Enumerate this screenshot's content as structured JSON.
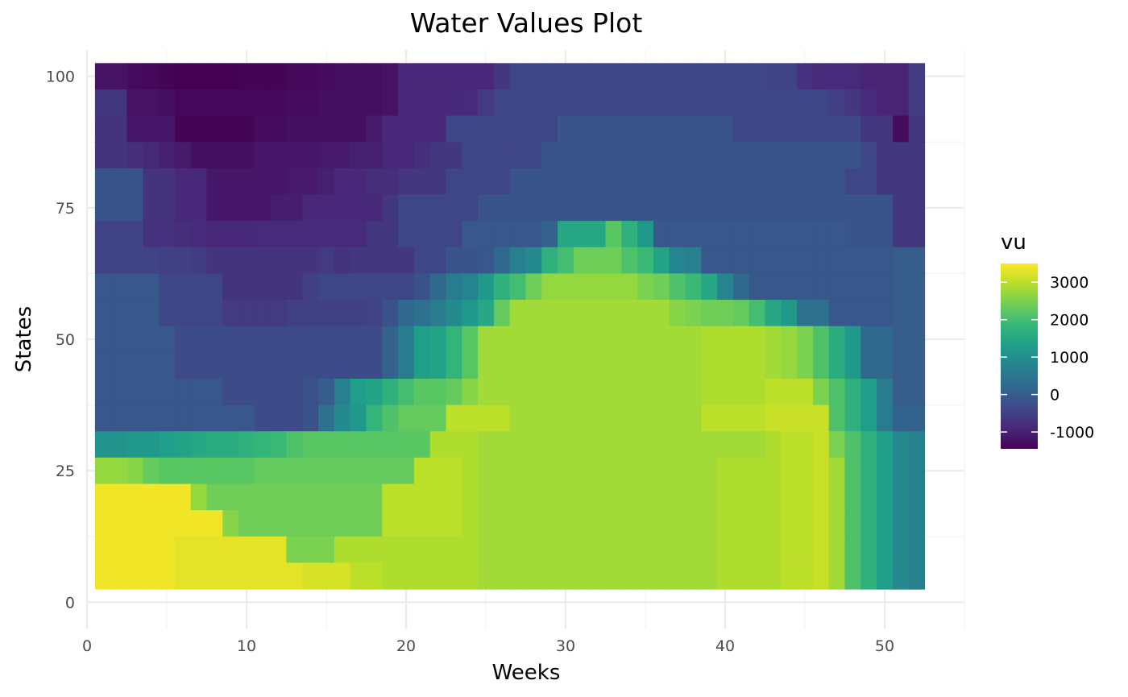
{
  "chart_data": {
    "type": "heatmap",
    "title": "Water Values Plot",
    "xlabel": "Weeks",
    "ylabel": "States",
    "x_range": [
      1,
      52
    ],
    "y_range": [
      5,
      100
    ],
    "xlim": [
      0,
      55
    ],
    "ylim": [
      -5,
      105
    ],
    "x_ticks": [
      0,
      10,
      20,
      30,
      40,
      50
    ],
    "y_ticks": [
      0,
      25,
      50,
      75,
      100
    ],
    "x_tick_labels": [
      "0",
      "10",
      "20",
      "30",
      "40",
      "50"
    ],
    "y_tick_labels": [
      "0",
      "25",
      "50",
      "75",
      "100"
    ],
    "grid": true,
    "colorscale": "viridis",
    "legend": {
      "title": "vu",
      "position": "right",
      "range": [
        -1450,
        3500
      ],
      "breaks": [
        -1000,
        0,
        1000,
        2000,
        3000
      ],
      "labels": [
        "-1000",
        "0",
        "1000",
        "2000",
        "3000"
      ]
    },
    "weeks": [
      1,
      2,
      3,
      4,
      5,
      6,
      7,
      8,
      9,
      10,
      11,
      12,
      13,
      14,
      15,
      16,
      17,
      18,
      19,
      20,
      21,
      22,
      23,
      24,
      25,
      26,
      27,
      28,
      29,
      30,
      31,
      32,
      33,
      34,
      35,
      36,
      37,
      38,
      39,
      40,
      41,
      42,
      43,
      44,
      45,
      46,
      47,
      48,
      49,
      50,
      51,
      52
    ],
    "states": [
      100,
      95,
      90,
      85,
      80,
      75,
      70,
      65,
      60,
      55,
      50,
      45,
      40,
      35,
      30,
      25,
      20,
      15,
      10,
      5
    ],
    "vu": [
      [
        -1200,
        -1200,
        -1300,
        -1350,
        -1400,
        -1450,
        -1450,
        -1450,
        -1450,
        -1400,
        -1400,
        -1400,
        -1350,
        -1350,
        -1300,
        -1250,
        -1250,
        -1250,
        -1200,
        -900,
        -900,
        -900,
        -900,
        -900,
        -900,
        -650,
        -400,
        -400,
        -400,
        -400,
        -400,
        -400,
        -400,
        -400,
        -400,
        -400,
        -400,
        -400,
        -400,
        -400,
        -400,
        -400,
        -450,
        -450,
        -750,
        -850,
        -850,
        -850,
        -950,
        -950,
        -950,
        -550
      ],
      [
        -650,
        -650,
        -1200,
        -1200,
        -1250,
        -1350,
        -1350,
        -1350,
        -1350,
        -1350,
        -1350,
        -1350,
        -1300,
        -1300,
        -1250,
        -1250,
        -1250,
        -1250,
        -1200,
        -900,
        -900,
        -900,
        -900,
        -850,
        -600,
        -400,
        -400,
        -400,
        -400,
        -400,
        -400,
        -400,
        -400,
        -400,
        -400,
        -400,
        -400,
        -400,
        -400,
        -400,
        -400,
        -400,
        -400,
        -400,
        -400,
        -400,
        -500,
        -650,
        -850,
        -950,
        -950,
        -550
      ],
      [
        -700,
        -700,
        -1150,
        -1150,
        -1150,
        -1400,
        -1400,
        -1400,
        -1400,
        -1400,
        -1300,
        -1300,
        -1250,
        -1250,
        -1250,
        -1250,
        -1250,
        -1100,
        -900,
        -900,
        -900,
        -900,
        -400,
        -400,
        -400,
        -400,
        -400,
        -400,
        -400,
        -150,
        -150,
        -150,
        -150,
        -150,
        -150,
        -150,
        -150,
        -150,
        -150,
        -150,
        -400,
        -400,
        -400,
        -400,
        -400,
        -400,
        -400,
        -400,
        -650,
        -650,
        -1300,
        -650
      ],
      [
        -700,
        -700,
        -800,
        -900,
        -1000,
        -1100,
        -1250,
        -1250,
        -1250,
        -1250,
        -1150,
        -1150,
        -1150,
        -1150,
        -1100,
        -1100,
        -1000,
        -1000,
        -900,
        -900,
        -800,
        -650,
        -650,
        -400,
        -400,
        -400,
        -400,
        -400,
        -150,
        -150,
        -150,
        -150,
        -150,
        -150,
        -150,
        -150,
        -150,
        -150,
        -150,
        -150,
        -150,
        -150,
        -150,
        -150,
        -150,
        -150,
        -150,
        -150,
        -400,
        -650,
        -650,
        -650
      ],
      [
        -150,
        -150,
        -150,
        -700,
        -700,
        -900,
        -900,
        -1150,
        -1150,
        -1150,
        -1150,
        -1150,
        -1100,
        -1100,
        -1000,
        -900,
        -900,
        -800,
        -800,
        -650,
        -650,
        -650,
        -400,
        -400,
        -400,
        -400,
        -150,
        -150,
        -150,
        -150,
        -150,
        -150,
        -150,
        -150,
        -150,
        -150,
        -150,
        -150,
        -150,
        -150,
        -150,
        -150,
        -150,
        -150,
        -150,
        -150,
        -150,
        -400,
        -400,
        -650,
        -650,
        -650
      ],
      [
        -150,
        -150,
        -150,
        -700,
        -700,
        -900,
        -900,
        -1150,
        -1150,
        -1150,
        -1150,
        -1050,
        -1050,
        -900,
        -900,
        -900,
        -900,
        -900,
        -650,
        -400,
        -400,
        -400,
        -400,
        -400,
        -150,
        -150,
        -150,
        -150,
        -150,
        -150,
        -150,
        -150,
        -150,
        -150,
        -150,
        -150,
        -150,
        -150,
        -150,
        -150,
        -150,
        -150,
        -150,
        -150,
        -150,
        -150,
        -150,
        -150,
        -150,
        -150,
        -650,
        -650
      ],
      [
        -450,
        -450,
        -450,
        -750,
        -750,
        -800,
        -850,
        -900,
        -900,
        -900,
        -850,
        -850,
        -850,
        -850,
        -850,
        -850,
        -850,
        -650,
        -650,
        -400,
        -400,
        -400,
        -400,
        -100,
        -100,
        -100,
        -100,
        -100,
        100,
        1500,
        1500,
        1500,
        2200,
        1700,
        1200,
        -100,
        -100,
        -100,
        -100,
        -100,
        -100,
        -100,
        -100,
        -100,
        -100,
        -100,
        -100,
        -150,
        -150,
        -150,
        -650,
        -650
      ],
      [
        -450,
        -450,
        -450,
        -450,
        -500,
        -500,
        -550,
        -700,
        -700,
        -700,
        -700,
        -700,
        -700,
        -700,
        -600,
        -700,
        -650,
        -650,
        -650,
        -650,
        -400,
        -400,
        -150,
        -150,
        -100,
        200,
        700,
        900,
        1700,
        2000,
        2400,
        2400,
        2400,
        2100,
        1900,
        1400,
        800,
        700,
        -100,
        -100,
        -100,
        -100,
        -100,
        -100,
        -100,
        -100,
        -100,
        -100,
        -100,
        -100,
        0,
        0
      ],
      [
        -100,
        -100,
        -100,
        -100,
        -400,
        -400,
        -400,
        -400,
        -700,
        -700,
        -700,
        -700,
        -700,
        -500,
        -400,
        -400,
        -400,
        -400,
        -400,
        -400,
        -200,
        200,
        600,
        800,
        1200,
        1700,
        2000,
        2400,
        2700,
        2700,
        2700,
        2700,
        2700,
        2700,
        2500,
        2400,
        2100,
        1900,
        1500,
        800,
        200,
        -100,
        -100,
        -100,
        -100,
        -100,
        -100,
        -100,
        -100,
        -100,
        0,
        0
      ],
      [
        -100,
        -100,
        -100,
        -100,
        -400,
        -400,
        -400,
        -400,
        -600,
        -600,
        -600,
        -600,
        -500,
        -500,
        -500,
        -500,
        -500,
        -450,
        -200,
        200,
        400,
        600,
        900,
        1200,
        1500,
        2300,
        2800,
        2800,
        2800,
        2800,
        2800,
        2800,
        2800,
        2800,
        2800,
        2800,
        2600,
        2500,
        2400,
        2400,
        2300,
        2000,
        1500,
        1200,
        400,
        400,
        -100,
        -100,
        -100,
        -100,
        0,
        0
      ],
      [
        -100,
        -100,
        -100,
        -100,
        -100,
        -300,
        -300,
        -300,
        -300,
        -300,
        -300,
        -300,
        -300,
        -300,
        -300,
        -300,
        -300,
        -300,
        100,
        600,
        1300,
        1400,
        1800,
        2200,
        2800,
        2800,
        2800,
        2800,
        2800,
        2800,
        2800,
        2800,
        2800,
        2800,
        2800,
        2800,
        2800,
        2800,
        2900,
        2900,
        2900,
        2900,
        2800,
        2700,
        2500,
        2100,
        1600,
        1200,
        200,
        200,
        0,
        0
      ],
      [
        -100,
        -100,
        -100,
        -100,
        -100,
        -300,
        -300,
        -300,
        -300,
        -300,
        -300,
        -300,
        -300,
        -300,
        -300,
        -300,
        -300,
        -300,
        100,
        600,
        1300,
        1400,
        1800,
        2200,
        2800,
        2800,
        2800,
        2800,
        2800,
        2800,
        2800,
        2800,
        2800,
        2800,
        2800,
        2800,
        2800,
        2800,
        2900,
        2900,
        2900,
        2900,
        2800,
        2700,
        2500,
        2100,
        1600,
        1200,
        200,
        200,
        0,
        0
      ],
      [
        -100,
        -100,
        -100,
        -100,
        -100,
        -100,
        -100,
        -100,
        -300,
        -300,
        -300,
        -300,
        -300,
        -200,
        0,
        700,
        1300,
        1400,
        1700,
        2000,
        2200,
        2200,
        2300,
        2600,
        2800,
        2800,
        2800,
        2800,
        2800,
        2800,
        2800,
        2800,
        2800,
        2800,
        2800,
        2800,
        2800,
        2800,
        2900,
        2900,
        2900,
        2900,
        3000,
        3000,
        3000,
        2500,
        2100,
        1700,
        1300,
        600,
        0,
        0
      ],
      [
        -100,
        -100,
        -100,
        -100,
        -100,
        -100,
        -100,
        -100,
        -100,
        -100,
        -300,
        -300,
        -300,
        -200,
        400,
        900,
        1200,
        1800,
        2100,
        2300,
        2300,
        2300,
        3000,
        3000,
        3000,
        3000,
        2800,
        2800,
        2800,
        2800,
        2800,
        2800,
        2800,
        2800,
        2800,
        2800,
        2800,
        2800,
        3000,
        3000,
        3000,
        3000,
        3100,
        3100,
        3100,
        3100,
        2100,
        1700,
        1300,
        600,
        100,
        100
      ],
      [
        1100,
        1100,
        1200,
        1200,
        1300,
        1400,
        1500,
        1600,
        1600,
        1700,
        1800,
        1900,
        2100,
        2200,
        2200,
        2200,
        2200,
        2200,
        2200,
        2200,
        2200,
        2900,
        2900,
        2900,
        2800,
        2800,
        2800,
        2800,
        2800,
        2800,
        2800,
        2800,
        2800,
        2800,
        2800,
        2800,
        2800,
        2800,
        2800,
        2800,
        2800,
        2800,
        2900,
        3000,
        3000,
        3100,
        2500,
        2100,
        1700,
        1300,
        900,
        700
      ],
      [
        2700,
        2700,
        2600,
        2300,
        2200,
        2200,
        2200,
        2200,
        2200,
        2200,
        2300,
        2300,
        2300,
        2300,
        2300,
        2300,
        2300,
        2300,
        2300,
        2300,
        3000,
        3000,
        3000,
        2900,
        2800,
        2800,
        2800,
        2800,
        2800,
        2800,
        2800,
        2800,
        2800,
        2800,
        2800,
        2800,
        2800,
        2800,
        2800,
        2900,
        2900,
        2900,
        2900,
        3000,
        3000,
        3100,
        2800,
        2100,
        1700,
        1300,
        900,
        700
      ],
      [
        3400,
        3400,
        3400,
        3400,
        3400,
        3400,
        2700,
        2400,
        2400,
        2400,
        2400,
        2400,
        2400,
        2400,
        2400,
        2400,
        2400,
        2400,
        3000,
        3000,
        3000,
        3000,
        3000,
        2900,
        2800,
        2800,
        2800,
        2800,
        2800,
        2800,
        2800,
        2800,
        2800,
        2800,
        2800,
        2800,
        2800,
        2800,
        2800,
        2900,
        2900,
        2900,
        2900,
        3000,
        3000,
        3100,
        2800,
        2100,
        1700,
        1300,
        900,
        700
      ],
      [
        3400,
        3400,
        3400,
        3400,
        3400,
        3400,
        3400,
        3400,
        2600,
        2400,
        2400,
        2400,
        2400,
        2400,
        2400,
        2400,
        2400,
        2400,
        3000,
        3000,
        3000,
        3000,
        3000,
        2900,
        2800,
        2800,
        2800,
        2800,
        2800,
        2800,
        2800,
        2800,
        2800,
        2800,
        2800,
        2800,
        2800,
        2800,
        2800,
        2900,
        2900,
        2900,
        2900,
        3000,
        3000,
        3100,
        2800,
        2100,
        1700,
        1300,
        900,
        700
      ],
      [
        3400,
        3400,
        3400,
        3400,
        3400,
        3300,
        3300,
        3300,
        3300,
        3300,
        3300,
        3300,
        2500,
        2500,
        2500,
        2900,
        2900,
        2900,
        2900,
        2900,
        2900,
        2900,
        2900,
        2900,
        2800,
        2800,
        2800,
        2800,
        2800,
        2800,
        2800,
        2800,
        2800,
        2800,
        2800,
        2800,
        2800,
        2800,
        2800,
        2900,
        2900,
        2900,
        2900,
        3000,
        3000,
        3100,
        2800,
        2100,
        1700,
        1300,
        900,
        700
      ],
      [
        3400,
        3400,
        3400,
        3400,
        3400,
        3300,
        3300,
        3300,
        3300,
        3300,
        3300,
        3300,
        3300,
        3200,
        3200,
        3200,
        3000,
        3000,
        2900,
        2900,
        2900,
        2900,
        2900,
        2900,
        2800,
        2800,
        2800,
        2800,
        2800,
        2800,
        2800,
        2800,
        2800,
        2800,
        2800,
        2800,
        2800,
        2800,
        2800,
        2900,
        2900,
        2900,
        2900,
        3000,
        3000,
        3100,
        2800,
        2100,
        1700,
        1300,
        900,
        700
      ]
    ]
  }
}
